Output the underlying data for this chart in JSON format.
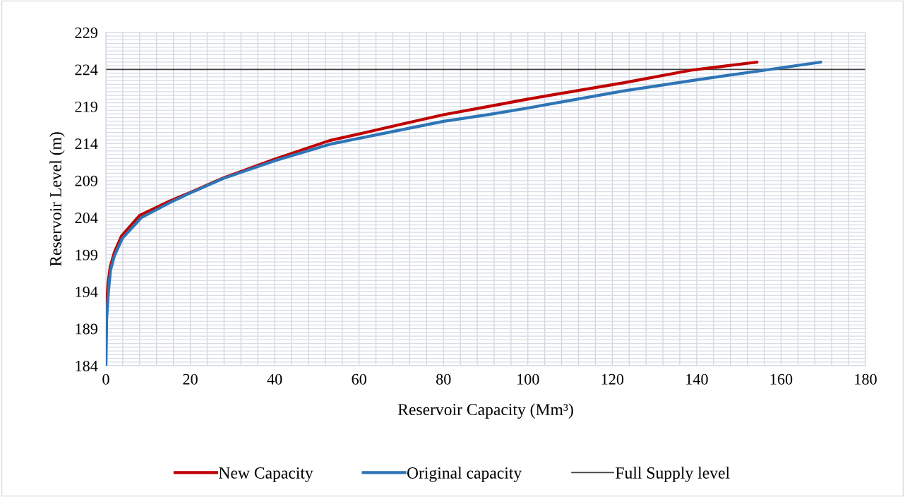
{
  "chart_data": {
    "type": "line",
    "xlabel": "Reservoir Capacity (Mm³)",
    "ylabel": "Reservoir Level (m)",
    "xlim": [
      0,
      180
    ],
    "xticks": [
      0,
      20,
      40,
      60,
      80,
      100,
      120,
      140,
      160,
      180
    ],
    "ylim": [
      184,
      229
    ],
    "yticks": [
      184,
      189,
      194,
      199,
      204,
      209,
      214,
      219,
      224,
      229
    ],
    "grid": true,
    "legend": "bottom",
    "marker": "none",
    "line_style": "solid",
    "series": [
      {
        "name": "New Capacity",
        "color": "#c00000",
        "x": [
          0,
          0.2,
          0.5,
          1,
          2,
          3.7,
          8,
          15,
          20,
          28,
          40,
          53,
          60,
          70,
          80,
          90.6,
          100,
          122.6,
          138.6,
          154.3
        ],
        "values": [
          184,
          192.5,
          195,
          197.3,
          199.3,
          201.5,
          204.3,
          206.2,
          207.4,
          209.4,
          211.9,
          214.4,
          215.3,
          216.6,
          217.9,
          219.0,
          220.0,
          222.2,
          223.9,
          225.0
        ]
      },
      {
        "name": "Original capacity",
        "color": "#2e75b6",
        "x": [
          0,
          0,
          0.15,
          0.28,
          0.6,
          1.1,
          2,
          3.9,
          8.4,
          15.1,
          19.5,
          27.9,
          40.1,
          53,
          66.9,
          80,
          90.6,
          100,
          122.6,
          140,
          156,
          169.4
        ],
        "values": [
          184,
          188,
          190,
          191.2,
          194,
          196.9,
          198.8,
          201.2,
          204.0,
          206.0,
          207.2,
          209.3,
          211.7,
          213.9,
          215.5,
          217.0,
          217.9,
          218.8,
          221.1,
          222.6,
          223.9,
          225.0
        ]
      }
    ],
    "ref_lines": [
      {
        "axis": "y",
        "value": 224,
        "label": "Full Supply level",
        "color": "#404040"
      }
    ]
  }
}
